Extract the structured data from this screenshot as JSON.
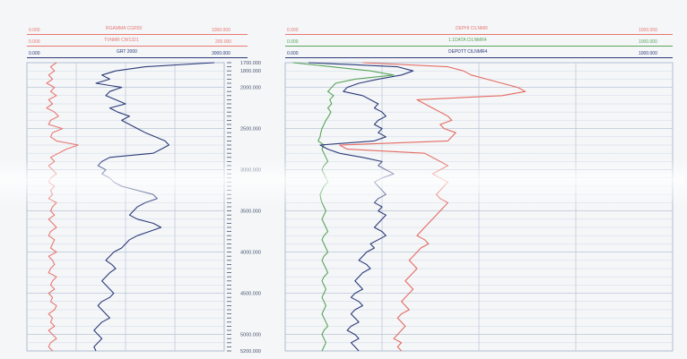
{
  "colors": {
    "gamma": "#e87872",
    "resistivity": "#2c3a78",
    "neutron": "#59a45a",
    "density": "#34407a",
    "caliper": "#e66a62",
    "grid": "#b9c6d6",
    "paper": "#f4f6f8"
  },
  "headers": {
    "left": [
      {
        "mnemonic": "RGAMMA CGR50",
        "min": "0.000",
        "max": "1000.000",
        "color": "#e87872"
      },
      {
        "mnemonic": "TVNMR CW1321",
        "min": "0.000",
        "max": "200.000",
        "color": "#e87872"
      },
      {
        "mnemonic": "GRT 2000",
        "min": "0.000",
        "max": "3000.000",
        "color": "#2c3a78"
      }
    ],
    "right": [
      {
        "mnemonic": "DEPHI CILNMR",
        "min": "0.000",
        "max": "1000.000",
        "color": "#e87872"
      },
      {
        "mnemonic": "1.1DATA CILNMR4",
        "min": "0.000",
        "max": "1000.000",
        "color": "#59a45a"
      },
      {
        "mnemonic": "DEPDTT CILNMR4",
        "min": "0.000",
        "max": "1000.000",
        "color": "#2c3a78"
      }
    ]
  },
  "chart_data": {
    "type": "line",
    "description_axis": "depth",
    "depth_range": [
      1700,
      5200
    ],
    "depth_ticks": [
      "1700.000",
      "1800.000",
      "2000.000",
      "2500.000",
      "3000.000",
      "3500.000",
      "4000.000",
      "4500.000",
      "5000.000",
      "5200.000"
    ],
    "depth": [
      1700,
      1750,
      1800,
      1850,
      1900,
      1950,
      2000,
      2050,
      2100,
      2150,
      2200,
      2250,
      2300,
      2350,
      2400,
      2450,
      2500,
      2550,
      2600,
      2650,
      2700,
      2750,
      2800,
      2850,
      2900,
      2950,
      3000,
      3050,
      3100,
      3150,
      3200,
      3250,
      3300,
      3350,
      3400,
      3450,
      3500,
      3550,
      3600,
      3650,
      3700,
      3750,
      3800,
      3850,
      3900,
      3950,
      4000,
      4050,
      4100,
      4150,
      4200,
      4250,
      4300,
      4350,
      4400,
      4450,
      4500,
      4550,
      4600,
      4650,
      4700,
      4750,
      4800,
      4850,
      4900,
      4950,
      5000,
      5050,
      5100,
      5150,
      5200
    ],
    "tracks": [
      {
        "track": "left",
        "xlim": [
          0,
          1000
        ],
        "series": [
          {
            "name": "RGAMMA CGR50",
            "color": "#e87872",
            "values": [
              150,
              120,
              140,
              110,
              130,
              100,
              140,
              120,
              150,
              110,
              130,
              100,
              140,
              160,
              120,
              110,
              180,
              130,
              120,
              150,
              260,
              200,
              160,
              120,
              140,
              110,
              130,
              150,
              120,
              110,
              140,
              120,
              130,
              110,
              150,
              130,
              120,
              140,
              110,
              130,
              150,
              120,
              110,
              140,
              130,
              120,
              150,
              110,
              130,
              140,
              120,
              110,
              150,
              130,
              120,
              140,
              110,
              130,
              120,
              150,
              140,
              110,
              130,
              120,
              140,
              110,
              130,
              150,
              120,
              110,
              130
            ]
          },
          {
            "name": "GRT 2000",
            "color": "#2c3a78",
            "values": [
              950,
              600,
              450,
              380,
              420,
              350,
              480,
              420,
              400,
              450,
              500,
              420,
              460,
              520,
              480,
              520,
              560,
              600,
              650,
              700,
              720,
              680,
              640,
              420,
              380,
              360,
              400,
              380,
              420,
              440,
              480,
              560,
              640,
              660,
              600,
              560,
              540,
              520,
              560,
              640,
              680,
              620,
              560,
              520,
              500,
              480,
              440,
              420,
              400,
              430,
              450,
              420,
              400,
              380,
              400,
              420,
              440,
              420,
              380,
              360,
              380,
              400,
              420,
              380,
              360,
              340,
              360,
              380,
              360,
              340,
              350
            ]
          }
        ]
      },
      {
        "track": "right",
        "xlim": [
          0,
          1000
        ],
        "series": [
          {
            "name": "1.1DATA CILNMR4",
            "color": "#59a45a",
            "values": [
              20,
              120,
              220,
              280,
              180,
              130,
              120,
              110,
              125,
              115,
              120,
              110,
              118,
              112,
              105,
              100,
              95,
              92,
              90,
              85,
              100,
              95,
              100,
              105,
              110,
              100,
              95,
              100,
              105,
              110,
              100,
              95,
              90,
              92,
              95,
              100,
              105,
              100,
              95,
              100,
              105,
              110,
              100,
              95,
              100,
              105,
              110,
              100,
              95,
              100,
              105,
              110,
              100,
              95,
              100,
              105,
              100,
              95,
              100,
              105,
              100,
              95,
              100,
              105,
              110,
              100,
              95,
              100,
              105,
              100,
              95
            ]
          },
          {
            "name": "DEPDTT CILNMR4",
            "color": "#2c3a78",
            "values": [
              60,
              290,
              330,
              300,
              240,
              190,
              160,
              150,
              200,
              220,
              240,
              230,
              250,
              260,
              240,
              230,
              250,
              240,
              260,
              230,
              90,
              110,
              140,
              200,
              250,
              240,
              260,
              280,
              250,
              230,
              240,
              250,
              260,
              240,
              230,
              250,
              240,
              260,
              250,
              240,
              230,
              250,
              260,
              240,
              220,
              230,
              210,
              200,
              190,
              210,
              220,
              200,
              190,
              180,
              190,
              200,
              180,
              170,
              190,
              200,
              180,
              170,
              180,
              190,
              170,
              160,
              180,
              190,
              170,
              180,
              190
            ]
          },
          {
            "name": "DEPHI CILNMR",
            "color": "#e66a62",
            "values": [
              200,
              420,
              460,
              480,
              520,
              560,
              600,
              620,
              560,
              340,
              360,
              380,
              400,
              420,
              430,
              400,
              410,
              440,
              430,
              420,
              140,
              160,
              360,
              380,
              400,
              420,
              400,
              380,
              400,
              420,
              410,
              400,
              390,
              400,
              420,
              410,
              400,
              390,
              380,
              370,
              360,
              350,
              340,
              360,
              370,
              350,
              340,
              330,
              320,
              330,
              340,
              330,
              320,
              310,
              320,
              330,
              320,
              310,
              300,
              310,
              320,
              300,
              290,
              300,
              310,
              300,
              290,
              280,
              300,
              290,
              300
            ]
          }
        ]
      }
    ],
    "legend": "top",
    "grid": true
  }
}
